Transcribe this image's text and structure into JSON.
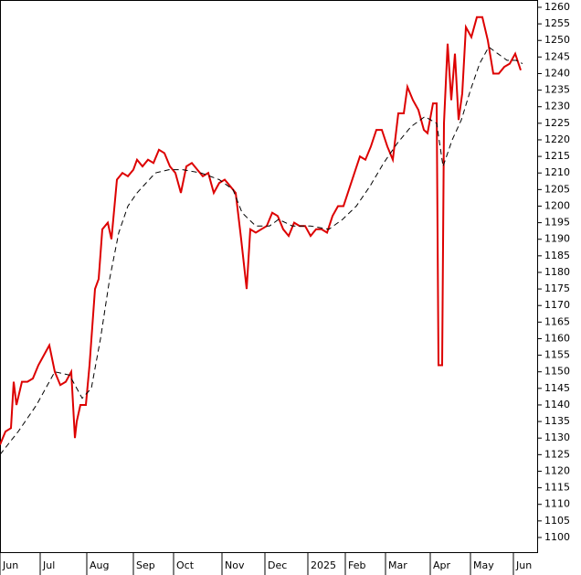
{
  "chart_data": {
    "type": "line",
    "xlim": [
      0,
      588
    ],
    "ylim": [
      1095.3,
      1262.2
    ],
    "xticks": [
      {
        "value": 0,
        "label": "Jun"
      },
      {
        "value": 44,
        "label": "Jul"
      },
      {
        "value": 95,
        "label": "Aug"
      },
      {
        "value": 146,
        "label": "Sep"
      },
      {
        "value": 190,
        "label": "Oct"
      },
      {
        "value": 243,
        "label": "Nov"
      },
      {
        "value": 290,
        "label": "Dec"
      },
      {
        "value": 337,
        "label": "2025"
      },
      {
        "value": 378,
        "label": "Feb"
      },
      {
        "value": 422,
        "label": "Mar"
      },
      {
        "value": 471,
        "label": "Apr"
      },
      {
        "value": 515,
        "label": "May"
      },
      {
        "value": 562,
        "label": "Jun"
      }
    ],
    "yticks": [
      1100,
      1105,
      1110,
      1115,
      1120,
      1125,
      1130,
      1135,
      1140,
      1145,
      1150,
      1155,
      1160,
      1165,
      1170,
      1175,
      1180,
      1185,
      1190,
      1195,
      1200,
      1205,
      1210,
      1215,
      1220,
      1225,
      1230,
      1235,
      1240,
      1245,
      1250,
      1255,
      1260
    ],
    "series": [
      {
        "color": "#dd0000",
        "dash": false,
        "x": [
          0,
          6,
          12,
          15,
          18,
          24,
          30,
          36,
          42,
          48,
          54,
          60,
          66,
          72,
          78,
          82,
          84,
          88,
          94,
          98,
          104,
          108,
          112,
          118,
          122,
          128,
          134,
          140,
          146,
          150,
          156,
          162,
          168,
          174,
          180,
          186,
          192,
          198,
          204,
          210,
          216,
          222,
          228,
          234,
          240,
          246,
          252,
          258,
          264,
          268,
          270,
          274,
          280,
          286,
          292,
          298,
          304,
          310,
          316,
          322,
          328,
          334,
          340,
          346,
          352,
          358,
          364,
          370,
          376,
          382,
          388,
          394,
          400,
          406,
          412,
          418,
          424,
          430,
          436,
          442,
          446,
          452,
          458,
          464,
          468,
          474,
          478,
          480,
          484,
          486,
          490,
          494,
          498,
          502,
          506,
          510,
          516,
          522,
          528,
          534,
          540,
          546,
          552,
          558,
          564,
          570
        ],
        "values": [
          1128,
          1132,
          1133,
          1147,
          1140,
          1147,
          1147,
          1148,
          1152,
          1155,
          1158,
          1150,
          1146,
          1147,
          1150,
          1130,
          1135,
          1140,
          1140,
          1152,
          1175,
          1178,
          1193,
          1195,
          1190,
          1208,
          1210,
          1209,
          1211,
          1214,
          1212,
          1214,
          1213,
          1217,
          1216,
          1212,
          1210,
          1204,
          1212,
          1213,
          1211,
          1209,
          1210,
          1204,
          1207,
          1208,
          1206,
          1204,
          1190,
          1180,
          1175,
          1193,
          1192,
          1193,
          1194,
          1198,
          1197,
          1193,
          1191,
          1195,
          1194,
          1194,
          1191,
          1193,
          1193,
          1192,
          1197,
          1200,
          1200,
          1205,
          1210,
          1215,
          1214,
          1218,
          1223,
          1223,
          1218,
          1214,
          1228,
          1228,
          1236,
          1232,
          1229,
          1223,
          1222,
          1231,
          1231,
          1152,
          1152,
          1225,
          1249,
          1232,
          1246,
          1226,
          1234,
          1254,
          1251,
          1257,
          1257,
          1250,
          1240,
          1240,
          1242,
          1243,
          1246,
          1241
        ]
      },
      {
        "color": "#000000",
        "dash": true,
        "x": [
          0,
          20,
          40,
          60,
          76,
          90,
          100,
          110,
          120,
          130,
          140,
          150,
          160,
          170,
          185,
          200,
          220,
          240,
          255,
          265,
          280,
          295,
          305,
          320,
          340,
          360,
          375,
          390,
          405,
          420,
          435,
          450,
          465,
          478,
          485,
          495,
          505,
          515,
          525,
          535,
          545,
          555,
          565,
          572
        ],
        "values": [
          1125,
          1132,
          1140,
          1150,
          1149,
          1142,
          1145,
          1160,
          1178,
          1192,
          1200,
          1204,
          1207,
          1210,
          1211,
          1211,
          1210,
          1208,
          1205,
          1198,
          1194,
          1194,
          1196,
          1194,
          1194,
          1193,
          1196,
          1200,
          1206,
          1213,
          1219,
          1224,
          1227,
          1225,
          1212,
          1220,
          1226,
          1235,
          1243,
          1248,
          1246,
          1244,
          1244,
          1243
        ]
      }
    ]
  }
}
